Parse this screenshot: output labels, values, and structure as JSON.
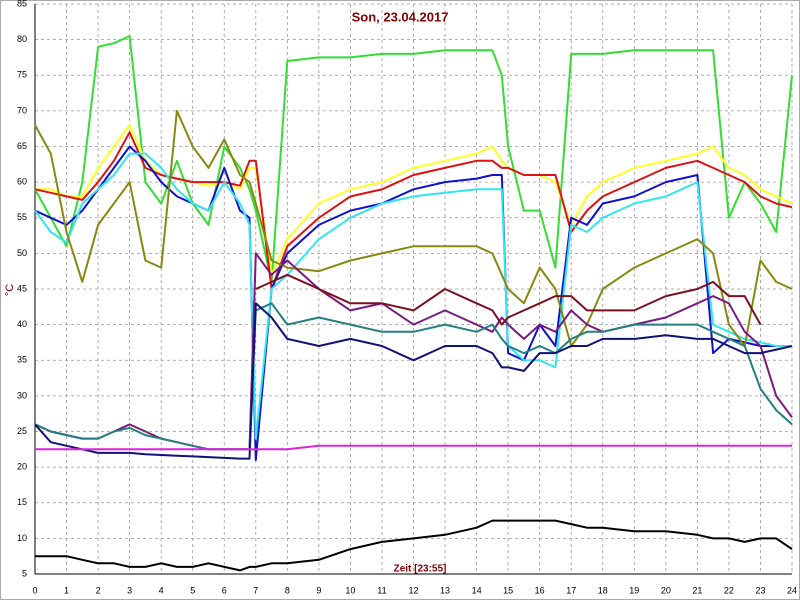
{
  "chart_data": {
    "type": "line",
    "title": "Son, 23.04.2017",
    "y_label": "°C",
    "x_label": "Zeit [23:55]",
    "xlim": [
      0,
      24
    ],
    "ylim": [
      5,
      85
    ],
    "xticks": [
      0,
      1,
      2,
      3,
      4,
      5,
      6,
      7,
      8,
      9,
      10,
      11,
      12,
      13,
      14,
      15,
      16,
      17,
      18,
      19,
      20,
      21,
      22,
      23,
      24
    ],
    "yticks": [
      5,
      10,
      15,
      20,
      25,
      30,
      35,
      40,
      45,
      50,
      55,
      60,
      65,
      70,
      75,
      80,
      85
    ],
    "grid": true,
    "x": [
      0,
      0.5,
      1,
      1.5,
      2,
      2.5,
      3,
      3.5,
      4,
      4.5,
      5,
      5.5,
      6,
      6.5,
      6.8,
      7,
      7.5,
      8,
      9,
      10,
      11,
      12,
      13,
      14,
      14.5,
      14.8,
      15,
      15.5,
      16,
      16.5,
      17,
      17.5,
      18,
      19,
      20,
      21,
      21.5,
      22,
      22.5,
      23,
      23.5,
      24
    ],
    "series": [
      {
        "color": "#33dd33",
        "values": [
          59,
          55,
          51,
          60,
          79,
          79.5,
          80.5,
          60,
          57,
          63,
          57,
          54,
          65,
          62,
          59,
          56,
          46,
          77,
          77.5,
          77.5,
          78,
          78,
          78.5,
          78.5,
          78.5,
          75,
          65,
          56,
          56,
          48,
          78,
          78,
          78,
          78.5,
          78.5,
          78.5,
          78.5,
          55,
          60,
          57,
          53,
          75
        ]
      },
      {
        "color": "#ffff22",
        "values": [
          59,
          59,
          58,
          58,
          62,
          65,
          68,
          63,
          61,
          60.5,
          60,
          59.5,
          60,
          59,
          62,
          62,
          47,
          52,
          57,
          59,
          60,
          62,
          63,
          64,
          65,
          63,
          62,
          61,
          61,
          60,
          54,
          58,
          60,
          62,
          63,
          64,
          65,
          62,
          61,
          59,
          58,
          57
        ]
      },
      {
        "color": "#dd1111",
        "values": [
          59,
          58.5,
          58,
          57.5,
          60,
          63,
          67,
          62,
          61,
          60.5,
          60,
          60,
          60,
          59.5,
          63,
          63,
          45,
          51,
          55,
          58,
          59,
          61,
          62,
          63,
          63,
          62,
          62,
          61,
          61,
          61,
          53,
          56,
          58,
          60,
          62,
          63,
          62,
          61,
          60,
          58,
          57,
          56.5
        ]
      },
      {
        "color": "#1111cc",
        "values": [
          56,
          55,
          54,
          56,
          59,
          62,
          65,
          63,
          60,
          58,
          57,
          56,
          62,
          56,
          55,
          21,
          45,
          50,
          54,
          56,
          57,
          59,
          60,
          60.5,
          61,
          61,
          36,
          35,
          40,
          37,
          55,
          54,
          57,
          58,
          60,
          61,
          36,
          38,
          37.5,
          37,
          37,
          37
        ]
      },
      {
        "color": "#33e5ee",
        "values": [
          56,
          53,
          51.5,
          57,
          59,
          61,
          64,
          64,
          62,
          59,
          57,
          56,
          60,
          57,
          54,
          24,
          45,
          47,
          52,
          55,
          57,
          58,
          58.5,
          59,
          59,
          59,
          37,
          35,
          35,
          34,
          54,
          53,
          55,
          57,
          58,
          60,
          40,
          39,
          38,
          37.5,
          37,
          37
        ]
      },
      {
        "color": "#888811",
        "values": [
          68,
          64,
          53,
          46,
          54,
          57,
          60,
          49,
          48,
          70,
          65,
          62,
          66,
          61,
          60,
          57,
          49,
          48,
          47.5,
          49,
          50,
          51,
          51,
          51,
          50,
          47,
          45,
          43,
          48,
          45,
          37,
          40,
          45,
          48,
          50,
          52,
          50,
          40,
          37,
          49,
          46,
          45
        ]
      },
      {
        "color": "#7a1a80",
        "values": [
          26,
          25,
          24.5,
          24,
          24,
          25,
          26,
          25,
          24,
          23.5,
          23,
          22.5,
          22.5,
          22.5,
          22.5,
          50,
          47,
          49,
          45,
          42,
          43,
          40,
          42,
          40,
          39,
          41,
          40,
          38,
          40,
          39,
          42,
          40,
          39,
          40,
          41,
          43,
          44,
          43,
          39,
          37,
          30,
          27
        ]
      },
      {
        "color": "#7a1020",
        "values": [
          null,
          null,
          null,
          null,
          null,
          null,
          null,
          null,
          null,
          null,
          null,
          null,
          null,
          null,
          null,
          45,
          46,
          47,
          45,
          43,
          43,
          42,
          45,
          43,
          42,
          40,
          41,
          42,
          43,
          44,
          44,
          42,
          42,
          42,
          44,
          45,
          46,
          44,
          44,
          40,
          null,
          null
        ]
      },
      {
        "color": "#238080",
        "values": [
          26,
          25,
          24.5,
          24,
          24,
          25,
          25.5,
          24.5,
          24,
          23.5,
          23,
          22.5,
          22.5,
          22.5,
          22.5,
          42,
          43,
          40,
          41,
          40,
          39,
          39,
          40,
          39,
          40,
          38,
          37,
          36,
          37,
          36,
          38,
          39,
          39,
          40,
          40,
          40,
          39,
          38,
          37,
          31,
          28,
          26
        ]
      },
      {
        "color": "#111177",
        "values": [
          26,
          23.5,
          23,
          22.5,
          22,
          22,
          22,
          21.8,
          21.7,
          21.6,
          21.5,
          21.4,
          21.3,
          21.2,
          21.2,
          43,
          41,
          38,
          37,
          38,
          37,
          35,
          37,
          37,
          36,
          34,
          34,
          33.5,
          36,
          36,
          37,
          37,
          38,
          38,
          38.5,
          38,
          38,
          37,
          36,
          36,
          36.5,
          37
        ]
      },
      {
        "color": "#dd22dd",
        "values": [
          22.5,
          22.5,
          22.5,
          22.5,
          22.5,
          22.5,
          22.5,
          22.5,
          22.5,
          22.5,
          22.5,
          22.5,
          22.5,
          22.5,
          22.5,
          22.5,
          22.5,
          22.5,
          23,
          23,
          23,
          23,
          23,
          23,
          23,
          23,
          23,
          23,
          23,
          23,
          23,
          23,
          23,
          23,
          23,
          23,
          23,
          23,
          23,
          23,
          23,
          23
        ]
      },
      {
        "color": "#000000",
        "values": [
          7.5,
          7.5,
          7.5,
          7,
          6.5,
          6.5,
          6,
          6,
          6.5,
          6,
          6,
          6.5,
          6,
          5.5,
          6,
          6,
          6.5,
          6.5,
          7,
          8.5,
          9.5,
          10,
          10.5,
          11.5,
          12.5,
          12.5,
          12.5,
          12.5,
          12.5,
          12.5,
          12,
          11.5,
          11.5,
          11,
          11,
          10.5,
          10,
          10,
          9.5,
          10,
          10,
          8.5
        ]
      }
    ]
  }
}
